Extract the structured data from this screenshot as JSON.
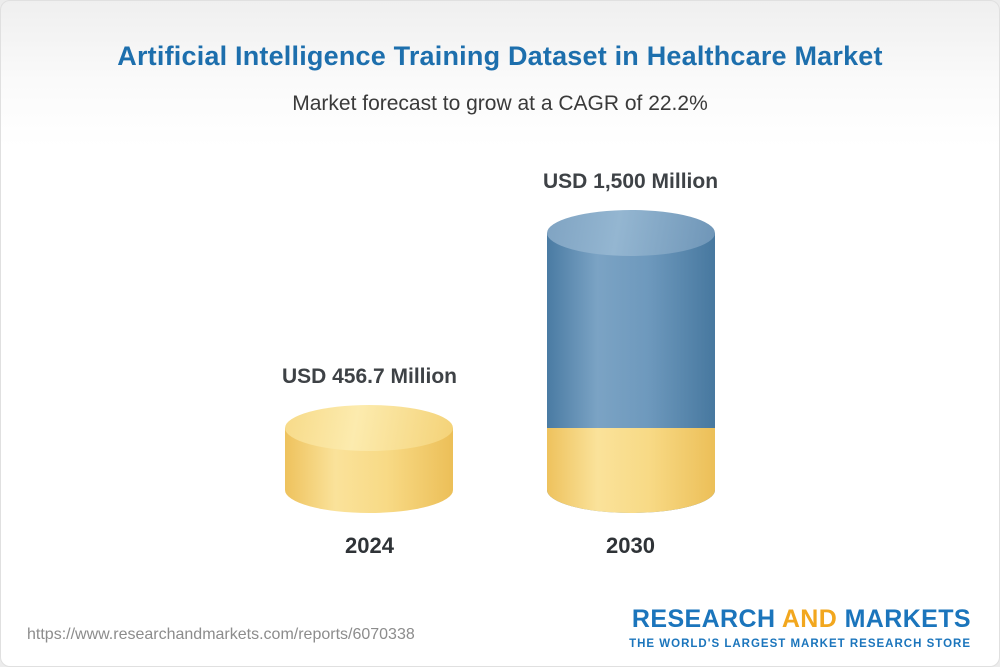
{
  "header": {
    "title": "Artificial Intelligence Training Dataset in Healthcare Market",
    "subtitle": "Market forecast to grow at a CAGR of 22.2%"
  },
  "chart_data": {
    "type": "bar",
    "title": "Artificial Intelligence Training Dataset in Healthcare Market",
    "subtitle": "Market forecast to grow at a CAGR of 22.2%",
    "cagr_percent": 22.2,
    "categories": [
      "2024",
      "2030"
    ],
    "values": [
      456.7,
      1500
    ],
    "value_labels": [
      "USD 456.7 Million",
      "USD 1,500 Million"
    ],
    "unit": "USD Million",
    "ylim": [
      0,
      1500
    ],
    "legend": "none",
    "grid": false,
    "bar_style": "3d-cylinder",
    "colors": {
      "bar_2024": "#f8da86",
      "bar_2030": "#5e8fb5",
      "bar_2030_base_segment": "#f8da86",
      "title_accent": "#1d6fad"
    }
  },
  "footer": {
    "url": "https://www.researchandmarkets.com/reports/6070338",
    "logo": {
      "word1": "RESEARCH",
      "word2": "AND",
      "word3": "MARKETS",
      "tagline": "THE WORLD'S LARGEST MARKET RESEARCH STORE"
    }
  }
}
